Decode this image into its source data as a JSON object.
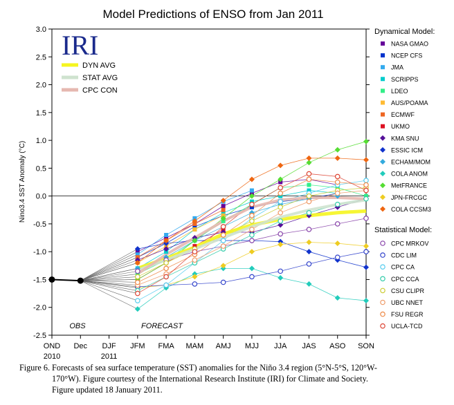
{
  "chart_data": {
    "type": "line",
    "title": "Model Predictions of ENSO from Jan 2011",
    "ylabel": "Nino3.4 SST Anomaly (°C)",
    "xlabel": "",
    "ylim": [
      -2.5,
      3.0
    ],
    "yticks": [
      "3.0",
      "2.5",
      "2.0",
      "1.5",
      "1.0",
      "0.5",
      "0.0",
      "-0.5",
      "-1.0",
      "-1.5",
      "-2.0",
      "-2.5"
    ],
    "categories": [
      "OND",
      "Dec",
      "DJF",
      "JFM",
      "FMA",
      "MAM",
      "AMJ",
      "MJJ",
      "JJA",
      "JAS",
      "ASO",
      "SON"
    ],
    "year_labels": [
      {
        "category": "OND",
        "text": "2010"
      },
      {
        "category": "DJF",
        "text": "2011"
      }
    ],
    "region_labels": {
      "obs": "OBS",
      "forecast": "FORECAST"
    },
    "logo": "IRI",
    "grid": false,
    "legend_position": "right",
    "observed": {
      "x": [
        "OND",
        "Dec"
      ],
      "values": [
        -1.5,
        -1.52
      ]
    },
    "averages": [
      {
        "name": "DYN AVG",
        "color": "#f5f51f",
        "values": [
          null,
          -1.52,
          null,
          -1.3,
          -1.12,
          -0.92,
          -0.68,
          -0.52,
          -0.42,
          -0.35,
          -0.3,
          -0.27
        ]
      },
      {
        "name": "STAT AVG",
        "color": "#cfe3cf",
        "values": [
          null,
          -1.52,
          null,
          -1.33,
          -1.15,
          -0.95,
          -0.75,
          -0.55,
          -0.38,
          -0.25,
          -0.15,
          -0.07
        ]
      },
      {
        "name": "CPC CON",
        "color": "#e6b8b0",
        "values": [
          null,
          -1.52,
          null,
          -1.4,
          -1.05,
          -0.75,
          -0.45,
          -0.2,
          -0.07,
          -0.03,
          -0.03,
          -0.05
        ]
      }
    ],
    "legend_headers": {
      "dynamical": "Dynamical Model:",
      "statistical": "Statistical Model:"
    },
    "series": [
      {
        "name": "NASA GMAO",
        "group": "dynamical",
        "marker": "square",
        "color": "#660099",
        "values": [
          null,
          -1.52,
          null,
          -1.0,
          -0.75,
          -0.5,
          -0.18,
          0.05,
          0.25,
          0.3,
          0.2,
          null
        ]
      },
      {
        "name": "NCEP CFS",
        "group": "dynamical",
        "marker": "square",
        "color": "#0033cc",
        "values": [
          null,
          -1.52,
          null,
          -1.1,
          -0.85,
          -0.55,
          -0.35,
          -0.2,
          -0.1,
          -0.05,
          0.05,
          null
        ]
      },
      {
        "name": "JMA",
        "group": "dynamical",
        "marker": "square",
        "color": "#33aaee",
        "values": [
          null,
          -1.52,
          null,
          -1.05,
          -0.7,
          -0.4,
          -0.1,
          0.1,
          null,
          null,
          null,
          null
        ]
      },
      {
        "name": "SCRIPPS",
        "group": "dynamical",
        "marker": "square",
        "color": "#00cccc",
        "values": [
          null,
          -1.52,
          null,
          -1.3,
          -1.0,
          -0.6,
          -0.3,
          -0.1,
          0.0,
          0.1,
          0.05,
          null
        ]
      },
      {
        "name": "LDEO",
        "group": "dynamical",
        "marker": "square",
        "color": "#33ee88",
        "values": [
          null,
          -1.52,
          null,
          -1.4,
          -1.15,
          -0.8,
          -0.45,
          -0.15,
          0.15,
          0.2,
          0.15,
          0.0
        ]
      },
      {
        "name": "AUS/POAMA",
        "group": "dynamical",
        "marker": "square",
        "color": "#ffbb33",
        "values": [
          null,
          -1.52,
          null,
          -1.2,
          -0.9,
          -0.6,
          -0.35,
          null,
          null,
          null,
          null,
          null
        ]
      },
      {
        "name": "ECMWF",
        "group": "dynamical",
        "marker": "square",
        "color": "#ee6622",
        "values": [
          null,
          -1.52,
          null,
          -1.1,
          -0.8,
          -0.5,
          -0.25,
          null,
          null,
          null,
          null,
          null
        ]
      },
      {
        "name": "UKMO",
        "group": "dynamical",
        "marker": "square",
        "color": "#dd1122",
        "values": [
          null,
          -1.52,
          null,
          -1.5,
          -1.2,
          -0.9,
          -0.6,
          null,
          null,
          null,
          null,
          null
        ]
      },
      {
        "name": "KMA SNU",
        "group": "dynamical",
        "marker": "diamond",
        "color": "#551199",
        "values": [
          null,
          -1.52,
          null,
          -1.15,
          -0.95,
          -0.75,
          -0.65,
          -0.65,
          -0.52,
          -0.35,
          -0.2,
          -0.05
        ]
      },
      {
        "name": "ESSIC ICM",
        "group": "dynamical",
        "marker": "diamond",
        "color": "#1133cc",
        "values": [
          null,
          -1.52,
          null,
          -0.95,
          -0.85,
          -0.8,
          -0.8,
          -0.8,
          -0.82,
          -1.0,
          -1.15,
          -1.28
        ]
      },
      {
        "name": "ECHAM/MOM",
        "group": "dynamical",
        "marker": "diamond",
        "color": "#33aadd",
        "values": [
          null,
          -1.52,
          null,
          -1.3,
          -1.1,
          -0.8,
          -0.55,
          -0.3,
          -0.15,
          -0.05,
          0.0,
          null
        ]
      },
      {
        "name": "COLA ANOM",
        "group": "dynamical",
        "marker": "diamond",
        "color": "#22ccbb",
        "values": [
          null,
          -1.52,
          null,
          -2.03,
          -1.65,
          -1.4,
          -1.3,
          -1.3,
          -1.47,
          -1.58,
          -1.83,
          -1.88
        ]
      },
      {
        "name": "MetFRANCE",
        "group": "dynamical",
        "marker": "diamond",
        "color": "#55dd33",
        "values": [
          null,
          -1.52,
          null,
          -1.5,
          -1.2,
          -0.8,
          -0.4,
          0.0,
          0.3,
          0.6,
          0.83,
          0.98
        ]
      },
      {
        "name": "JPN-FRCGC",
        "group": "dynamical",
        "marker": "diamond",
        "color": "#eecc22",
        "values": [
          null,
          -1.52,
          null,
          -1.65,
          -1.6,
          -1.45,
          -1.25,
          -1.0,
          -0.87,
          -0.83,
          -0.85,
          -0.9
        ]
      },
      {
        "name": "COLA CCSM3",
        "group": "dynamical",
        "marker": "diamond",
        "color": "#ee6611",
        "values": [
          null,
          -1.52,
          null,
          -1.2,
          -0.8,
          -0.45,
          -0.08,
          0.3,
          0.55,
          0.68,
          0.68,
          0.65
        ]
      },
      {
        "name": "CPC MRKOV",
        "group": "statistical",
        "marker": "circle",
        "color": "#8844aa",
        "values": [
          null,
          -1.52,
          null,
          -1.35,
          -1.15,
          -1.0,
          -0.9,
          -0.8,
          -0.68,
          -0.6,
          -0.5,
          -0.4
        ]
      },
      {
        "name": "CDC LIM",
        "group": "statistical",
        "marker": "circle",
        "color": "#3344cc",
        "values": [
          null,
          -1.52,
          null,
          -1.63,
          -1.6,
          -1.58,
          -1.55,
          -1.45,
          -1.35,
          -1.22,
          -1.1,
          -1.0
        ]
      },
      {
        "name": "CPC CA",
        "group": "statistical",
        "marker": "circle",
        "color": "#55ccee",
        "values": [
          null,
          -1.52,
          null,
          -1.88,
          -1.6,
          -1.2,
          -0.8,
          -0.4,
          -0.1,
          0.05,
          0.2,
          0.28
        ]
      },
      {
        "name": "CPC CCA",
        "group": "statistical",
        "marker": "circle",
        "color": "#33ccaa",
        "values": [
          null,
          -1.52,
          null,
          -1.7,
          -1.45,
          -1.2,
          -0.95,
          -0.7,
          -0.45,
          -0.3,
          -0.15,
          -0.05
        ]
      },
      {
        "name": "CSU CLIPR",
        "group": "statistical",
        "marker": "circle",
        "color": "#cccc33",
        "values": [
          null,
          -1.52,
          null,
          -1.45,
          -1.2,
          -0.95,
          -0.7,
          -0.45,
          -0.2,
          0.0,
          0.1,
          0.15
        ]
      },
      {
        "name": "UBC NNET",
        "group": "statistical",
        "marker": "circle",
        "color": "#ee9966",
        "values": [
          null,
          -1.52,
          null,
          -1.6,
          -1.4,
          -1.15,
          -0.9,
          -0.6,
          -0.3,
          -0.1,
          0.05,
          0.1
        ]
      },
      {
        "name": "FSU REGR",
        "group": "statistical",
        "marker": "circle",
        "color": "#ee8844",
        "values": [
          null,
          -1.52,
          null,
          -1.55,
          -1.3,
          -1.05,
          -0.7,
          -0.35,
          0.05,
          0.3,
          0.25,
          0.2
        ]
      },
      {
        "name": "UCLA-TCD",
        "group": "statistical",
        "marker": "circle",
        "color": "#dd4433",
        "values": [
          null,
          -1.52,
          null,
          -1.75,
          -1.45,
          -1.0,
          -0.55,
          -0.15,
          0.15,
          0.4,
          0.35,
          0.1
        ]
      }
    ]
  },
  "caption": {
    "line1": "Figure 6. Forecasts of sea surface temperature (SST) anomalies  for the Niño 3.4 region (5°N-5°S, 120°W-",
    "line2": "170°W).  Figure courtesy of the International Research Institute (IRI) for Climate and Society.",
    "line3": "Figure updated 18 January 2011."
  }
}
